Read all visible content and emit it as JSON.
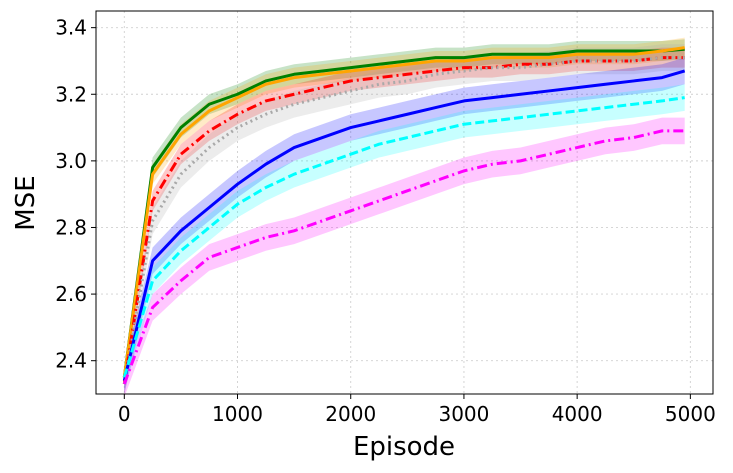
{
  "chart_data": {
    "type": "line",
    "title": "",
    "xlabel": "Episode",
    "ylabel": "MSE",
    "xlim": [
      -250,
      5200
    ],
    "ylim": [
      2.3,
      3.45
    ],
    "xticks": [
      0,
      1000,
      2000,
      3000,
      4000,
      5000
    ],
    "yticks": [
      2.4,
      2.6,
      2.8,
      3.0,
      3.2,
      3.4
    ],
    "xtick_labels": [
      "0",
      "1000",
      "2000",
      "3000",
      "4000",
      "5000"
    ],
    "ytick_labels": [
      "2.4",
      "2.6",
      "2.8",
      "3.0",
      "3.2",
      "3.4"
    ],
    "grid": true,
    "legend": "none",
    "x": [
      0,
      250,
      500,
      750,
      1000,
      1250,
      1500,
      1750,
      2000,
      2250,
      2500,
      2750,
      3000,
      3250,
      3500,
      3750,
      4000,
      4250,
      4500,
      4750,
      4950
    ],
    "series": [
      {
        "color": "#008000",
        "style": "solid",
        "band": 0.03,
        "values": [
          2.35,
          2.98,
          3.1,
          3.17,
          3.2,
          3.24,
          3.26,
          3.27,
          3.28,
          3.29,
          3.3,
          3.31,
          3.31,
          3.32,
          3.32,
          3.32,
          3.33,
          3.33,
          3.33,
          3.33,
          3.335
        ]
      },
      {
        "color": "#ffa500",
        "style": "solid",
        "band": 0.03,
        "values": [
          2.35,
          2.96,
          3.08,
          3.15,
          3.19,
          3.23,
          3.25,
          3.26,
          3.27,
          3.28,
          3.29,
          3.3,
          3.3,
          3.31,
          3.31,
          3.31,
          3.32,
          3.32,
          3.32,
          3.33,
          3.34
        ]
      },
      {
        "color": "#ff0000",
        "style": "dashdot",
        "band": 0.03,
        "values": [
          2.33,
          2.88,
          3.02,
          3.09,
          3.14,
          3.18,
          3.2,
          3.22,
          3.24,
          3.25,
          3.26,
          3.27,
          3.28,
          3.28,
          3.29,
          3.29,
          3.3,
          3.3,
          3.3,
          3.31,
          3.31
        ]
      },
      {
        "color": "#a9a9a9",
        "style": "dotted",
        "band": 0.04,
        "values": [
          2.33,
          2.82,
          2.96,
          3.04,
          3.1,
          3.14,
          3.17,
          3.19,
          3.21,
          3.23,
          3.24,
          3.26,
          3.27,
          3.28,
          3.28,
          3.29,
          3.3,
          3.3,
          3.3,
          3.31,
          3.31
        ]
      },
      {
        "color": "#0000ff",
        "style": "solid",
        "band": 0.04,
        "values": [
          2.34,
          2.7,
          2.79,
          2.86,
          2.93,
          2.99,
          3.04,
          3.07,
          3.1,
          3.12,
          3.14,
          3.16,
          3.18,
          3.19,
          3.2,
          3.21,
          3.22,
          3.23,
          3.24,
          3.25,
          3.27
        ]
      },
      {
        "color": "#00ffff",
        "style": "dashed",
        "band": 0.04,
        "values": [
          2.35,
          2.64,
          2.73,
          2.8,
          2.87,
          2.92,
          2.96,
          2.99,
          3.02,
          3.05,
          3.07,
          3.09,
          3.11,
          3.12,
          3.13,
          3.14,
          3.15,
          3.16,
          3.17,
          3.18,
          3.19
        ]
      },
      {
        "color": "#ff00ff",
        "style": "dashdot",
        "band": 0.04,
        "values": [
          2.33,
          2.56,
          2.64,
          2.71,
          2.74,
          2.77,
          2.79,
          2.82,
          2.85,
          2.88,
          2.91,
          2.94,
          2.97,
          2.99,
          3.0,
          3.02,
          3.04,
          3.06,
          3.07,
          3.09,
          3.09
        ]
      }
    ]
  }
}
